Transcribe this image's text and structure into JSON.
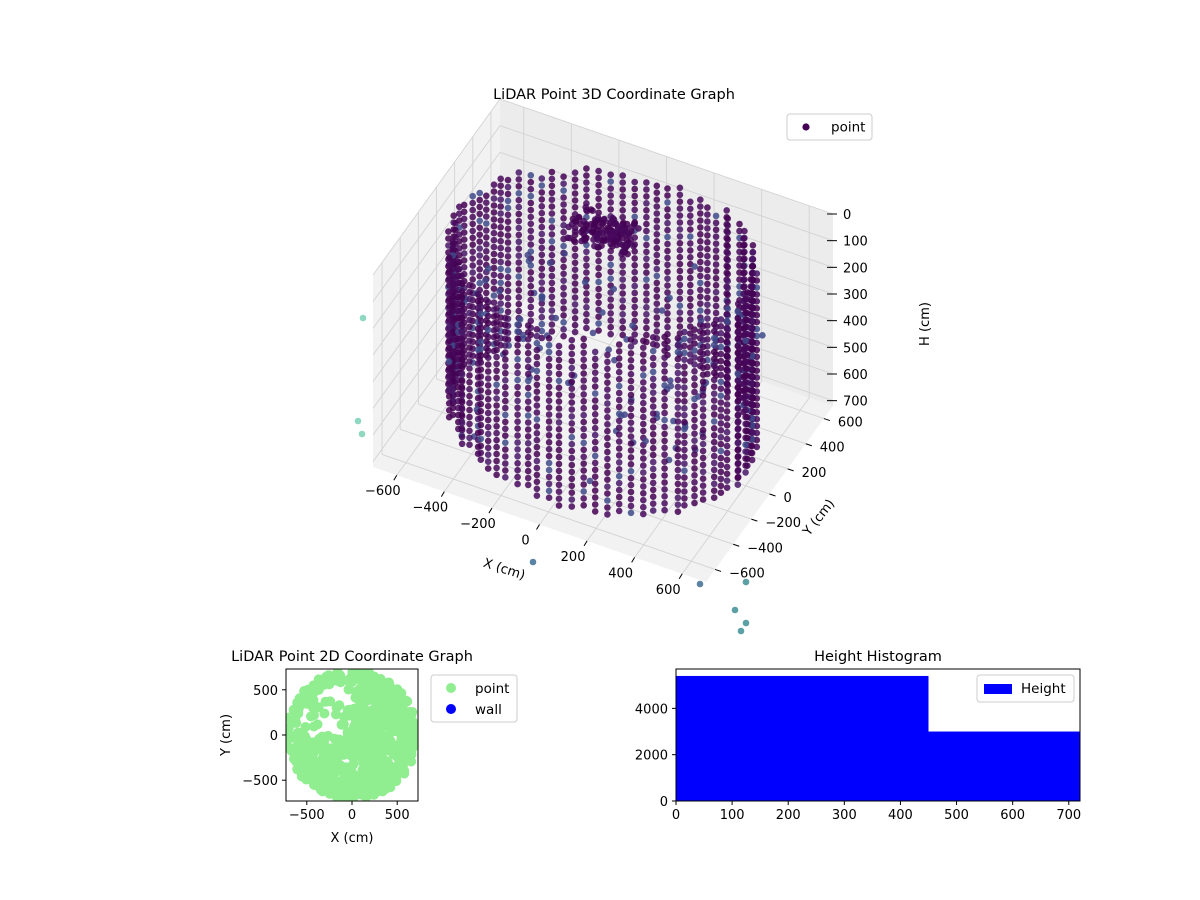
{
  "figure": {
    "background": "#ffffff"
  },
  "chart_data": [
    {
      "id": "chart3d",
      "type": "scatter",
      "projection": "3d",
      "title": "LiDAR Point 3D Coordinate Graph",
      "xlabel": "X (cm)",
      "ylabel": "Y (cm)",
      "zlabel": "H (cm)",
      "xlim": [
        -700,
        700
      ],
      "ylim": [
        -700,
        700
      ],
      "zlim": [
        0,
        720
      ],
      "z_inverted": true,
      "x_ticks": [
        "−600",
        "−400",
        "−200",
        "0",
        "200",
        "400",
        "600"
      ],
      "y_ticks": [
        "−600",
        "−400",
        "−200",
        "0",
        "200",
        "400",
        "600"
      ],
      "z_ticks": [
        "0",
        "100",
        "200",
        "300",
        "400",
        "500",
        "600",
        "700"
      ],
      "grid": true,
      "legend": {
        "position": "top-right",
        "entries": [
          {
            "name": "point",
            "color": "#440154"
          }
        ]
      },
      "colormap": "viridis",
      "series": [
        {
          "name": "point",
          "description": "ring of vertical columns of points around a room (radius ~600 cm, heights 0–700 cm), inner ledge cluster near H≈150, scattered interior points",
          "outer_ring_radius_cm": 600,
          "height_range": [
            0,
            700
          ]
        }
      ]
    },
    {
      "id": "chart2d",
      "type": "scatter",
      "title": "LiDAR Point 2D Coordinate Graph",
      "xlabel": "X (cm)",
      "ylabel": "Y (cm)",
      "xlim": [
        -730,
        730
      ],
      "ylim": [
        -730,
        730
      ],
      "x_ticks": [
        -500,
        0,
        500
      ],
      "y_ticks": [
        -500,
        0,
        500
      ],
      "legend": {
        "position": "outside-right",
        "entries": [
          {
            "name": "point",
            "color": "#90ee90"
          },
          {
            "name": "wall",
            "color": "#0000ff"
          }
        ]
      },
      "series": [
        {
          "name": "point",
          "color": "#90ee90",
          "description": "filled disk of points, radius ~700 cm, with an open area in the upper-left quadrant"
        },
        {
          "name": "wall",
          "color": "#0000ff",
          "points": []
        }
      ]
    },
    {
      "id": "hist",
      "type": "bar",
      "subtype": "histogram",
      "title": "Height Histogram",
      "xlim": [
        0,
        720
      ],
      "ylim": [
        0,
        5700
      ],
      "x_ticks": [
        0,
        100,
        200,
        300,
        400,
        500,
        600,
        700
      ],
      "y_ticks": [
        0,
        2000,
        4000
      ],
      "bins": [
        {
          "start": 0,
          "end": 450,
          "count": 5400
        },
        {
          "start": 450,
          "end": 720,
          "count": 3000
        }
      ],
      "color": "#0000ff",
      "legend": {
        "position": "top-right",
        "entries": [
          {
            "name": "Height",
            "color": "#0000ff"
          }
        ]
      }
    }
  ]
}
